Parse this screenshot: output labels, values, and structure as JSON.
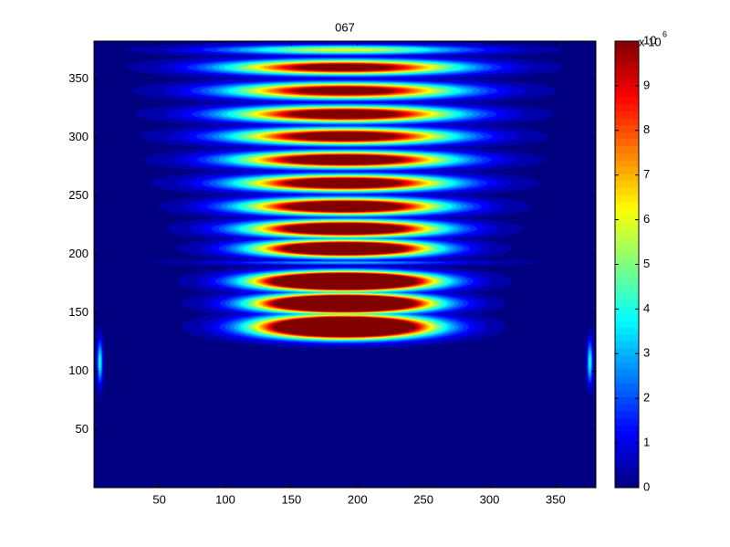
{
  "chart_data": {
    "type": "heatmap",
    "title": "067",
    "xlim": [
      0.5,
      380.5
    ],
    "ylim": [
      0.5,
      382.5
    ],
    "xticks": [
      50,
      100,
      150,
      200,
      250,
      300,
      350
    ],
    "yticks": [
      50,
      100,
      150,
      200,
      250,
      300,
      350
    ],
    "blobs": [
      {
        "x": 190,
        "y": 138,
        "peak": 25,
        "sx": 56,
        "sy": 8.5
      },
      {
        "x": 190,
        "y": 158,
        "peak": 25,
        "sx": 56,
        "sy": 7
      },
      {
        "x": 190,
        "y": 177,
        "peak": 25,
        "sx": 58,
        "sy": 7
      },
      {
        "x": 190,
        "y": 193,
        "peak": 3,
        "sx": 90,
        "sy": 2
      },
      {
        "x": 190,
        "y": 205,
        "peak": 18,
        "sx": 60,
        "sy": 6.5
      },
      {
        "x": 190,
        "y": 222,
        "peak": 16,
        "sx": 65,
        "sy": 6.5
      },
      {
        "x": 190,
        "y": 241,
        "peak": 15,
        "sx": 68,
        "sy": 6.5
      },
      {
        "x": 190,
        "y": 261,
        "peak": 14,
        "sx": 72,
        "sy": 6.5
      },
      {
        "x": 190,
        "y": 281,
        "peak": 14,
        "sx": 74,
        "sy": 6.5
      },
      {
        "x": 190,
        "y": 301,
        "peak": 13,
        "sx": 76,
        "sy": 6.5
      },
      {
        "x": 190,
        "y": 320,
        "peak": 13,
        "sx": 78,
        "sy": 6.5
      },
      {
        "x": 190,
        "y": 340,
        "peak": 12,
        "sx": 80,
        "sy": 6.5
      },
      {
        "x": 190,
        "y": 360,
        "peak": 12,
        "sx": 82,
        "sy": 6
      },
      {
        "x": 190,
        "y": 375,
        "peak": 6,
        "sx": 90,
        "sy": 4
      },
      {
        "x": 5,
        "y": 108,
        "peak": 4,
        "sx": 2,
        "sy": 18
      },
      {
        "x": 376,
        "y": 108,
        "peak": 4,
        "sx": 2,
        "sy": 18
      }
    ],
    "colorbar": {
      "lim": [
        0,
        10
      ],
      "ticks": [
        0,
        1,
        2,
        3,
        4,
        5,
        6,
        7,
        8,
        9,
        10
      ],
      "exponent_label": "x 10",
      "exponent": 6
    }
  }
}
